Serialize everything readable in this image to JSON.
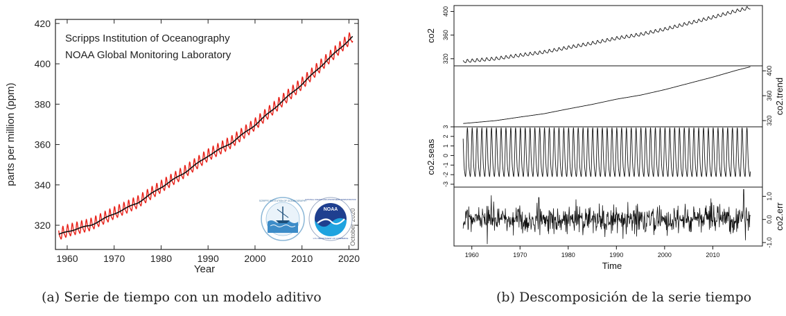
{
  "captions": {
    "a": "(a) Serie de tiempo con un modelo aditivo",
    "b": "(b) Descomposición de la serie tiempo"
  },
  "chart_data": [
    {
      "type": "line",
      "title_lines": [
        "Scripps Institution of Oceanography",
        "NOAA Global Monitoring Laboratory"
      ],
      "xlabel": "Year",
      "ylabel": "parts per million (ppm)",
      "xlim": [
        1957.5,
        2022
      ],
      "ylim": [
        308,
        422
      ],
      "xticks": [
        1960,
        1970,
        1980,
        1990,
        2000,
        2010,
        2020
      ],
      "yticks": [
        320,
        340,
        360,
        380,
        400,
        420
      ],
      "annotation": "October 2020",
      "logo_labels": [
        "SCRIPPS INSTITUTION OF OCEANOGRAPHY",
        "NOAA",
        "NATIONAL OCEANIC AND ATMOSPHERIC ADMINISTRATION",
        "U.S. DEPARTMENT OF COMMERCE"
      ],
      "colors": {
        "seasonal": "#e8221a",
        "trend": "#111111"
      },
      "trend_points": [
        [
          1958.2,
          315.3
        ],
        [
          1960,
          316.9
        ],
        [
          1965,
          320.0
        ],
        [
          1970,
          325.7
        ],
        [
          1975,
          331.1
        ],
        [
          1980,
          338.8
        ],
        [
          1985,
          346.1
        ],
        [
          1990,
          354.4
        ],
        [
          1995,
          360.9
        ],
        [
          2000,
          369.7
        ],
        [
          2005,
          379.8
        ],
        [
          2010,
          389.9
        ],
        [
          2015,
          401.0
        ],
        [
          2020.8,
          413.5
        ]
      ],
      "seasonal_amplitude_ppm": 3.2
    },
    {
      "type": "line",
      "xlabel": "Time",
      "xlim": [
        1956.3,
        2020.3
      ],
      "xticks": [
        1960,
        1970,
        1980,
        1990,
        2000,
        2010
      ],
      "panels": [
        {
          "name": "co2",
          "axis_side": "left",
          "ylim": [
            308,
            410
          ],
          "yticks": [
            320,
            360,
            400
          ],
          "trend_points": [
            [
              1958.2,
              315.3
            ],
            [
              1965,
              320.0
            ],
            [
              1970,
              325.7
            ],
            [
              1975,
              331.1
            ],
            [
              1980,
              338.8
            ],
            [
              1985,
              346.1
            ],
            [
              1990,
              354.4
            ],
            [
              1995,
              360.9
            ],
            [
              2000,
              369.7
            ],
            [
              2005,
              379.8
            ],
            [
              2010,
              389.9
            ],
            [
              2015,
              401.0
            ],
            [
              2017.8,
              406.5
            ]
          ],
          "seasonal_amplitude": 3.0
        },
        {
          "name": "co2.trend",
          "axis_side": "right",
          "ylim": [
            310,
            408
          ],
          "yticks": [
            320,
            360,
            400
          ],
          "trend_points": [
            [
              1958.2,
              315.3
            ],
            [
              1965,
              320.0
            ],
            [
              1970,
              325.7
            ],
            [
              1975,
              331.1
            ],
            [
              1980,
              338.8
            ],
            [
              1985,
              346.1
            ],
            [
              1990,
              354.4
            ],
            [
              1995,
              360.9
            ],
            [
              2000,
              369.7
            ],
            [
              2005,
              379.8
            ],
            [
              2010,
              389.9
            ],
            [
              2015,
              401.0
            ],
            [
              2017.8,
              406.5
            ]
          ]
        },
        {
          "name": "co2.seas",
          "axis_side": "left",
          "ylim": [
            -3.3,
            3.0
          ],
          "yticks": [
            -3,
            -2,
            -1,
            0,
            1,
            2,
            3
          ],
          "seasonal_min": -3.1,
          "seasonal_max": 2.9
        },
        {
          "name": "co2.err",
          "axis_side": "right",
          "ylim": [
            -1.15,
            1.4
          ],
          "yticks": [
            -1.0,
            0.0,
            1.0
          ],
          "ytick_labels": [
            "-1.0",
            "0.0",
            "1.0"
          ],
          "noise_sd": 0.3
        }
      ]
    }
  ]
}
